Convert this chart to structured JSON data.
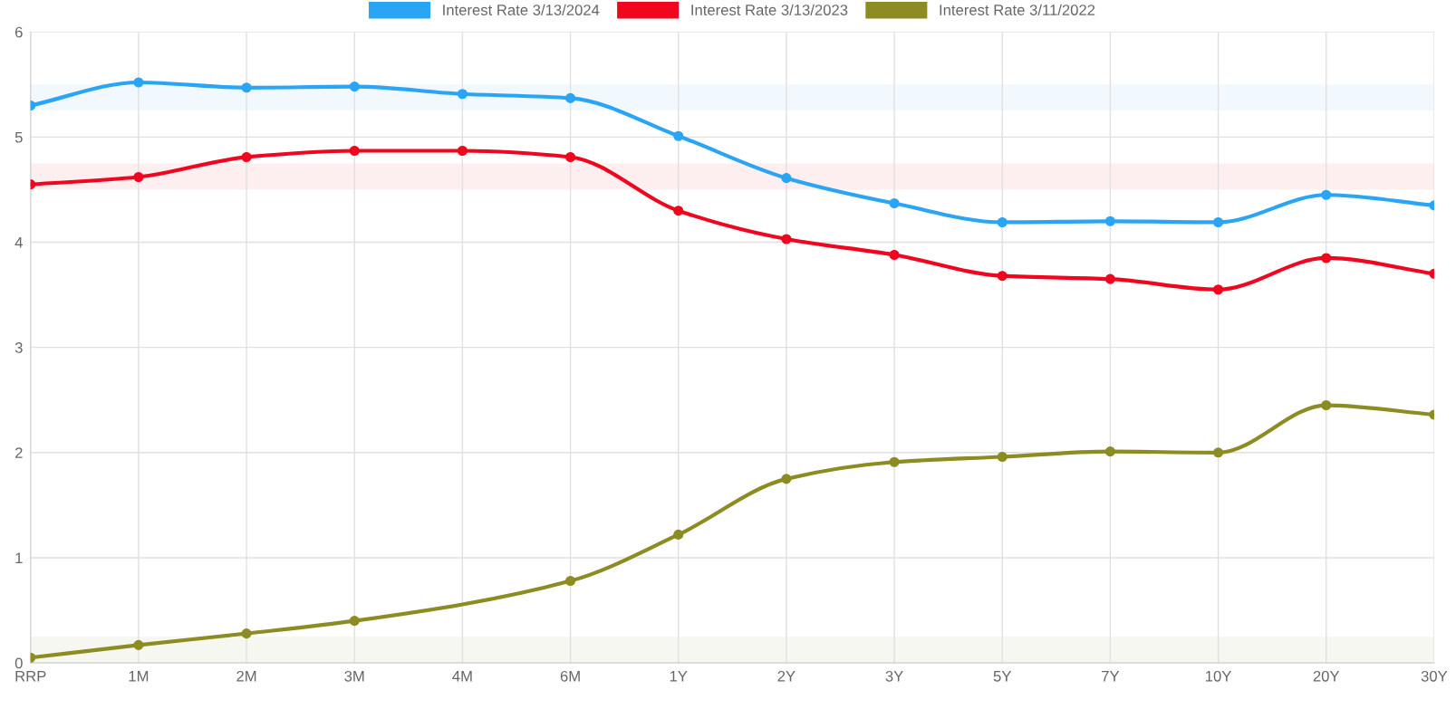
{
  "chart_data": {
    "type": "line",
    "categories": [
      "RRP",
      "1M",
      "2M",
      "3M",
      "4M",
      "6M",
      "1Y",
      "2Y",
      "3Y",
      "5Y",
      "7Y",
      "10Y",
      "20Y",
      "30Y"
    ],
    "series": [
      {
        "name": "Interest Rate 3/13/2024",
        "color": "#2aa5f5",
        "values": [
          5.3,
          5.52,
          5.47,
          5.48,
          5.41,
          5.37,
          5.01,
          4.61,
          4.37,
          4.19,
          4.2,
          4.19,
          4.45,
          4.35
        ]
      },
      {
        "name": "Interest Rate 3/13/2023",
        "color": "#f0061e",
        "values": [
          4.55,
          4.62,
          4.81,
          4.87,
          4.87,
          4.81,
          4.3,
          4.03,
          3.88,
          3.68,
          3.65,
          3.55,
          3.85,
          3.7
        ]
      },
      {
        "name": "Interest Rate 3/11/2022",
        "color": "#8c8c23",
        "values": [
          0.05,
          0.17,
          0.28,
          0.4,
          null,
          0.78,
          1.22,
          1.75,
          1.91,
          1.96,
          2.01,
          2.0,
          2.45,
          2.36
        ]
      }
    ],
    "bands": [
      {
        "axis": "y",
        "from": 5.25,
        "to": 5.5,
        "color": "#f2f9fe"
      },
      {
        "axis": "y",
        "from": 4.5,
        "to": 4.75,
        "color": "#fdeff0"
      },
      {
        "axis": "y",
        "from": 0,
        "to": 0.25,
        "color": "#f7f7f1"
      }
    ],
    "ylim": [
      0,
      6
    ],
    "yticks": [
      0,
      1,
      2,
      3,
      4,
      5,
      6
    ],
    "grid": true,
    "legend": "top",
    "marker": "circle",
    "line_style": "solid"
  }
}
